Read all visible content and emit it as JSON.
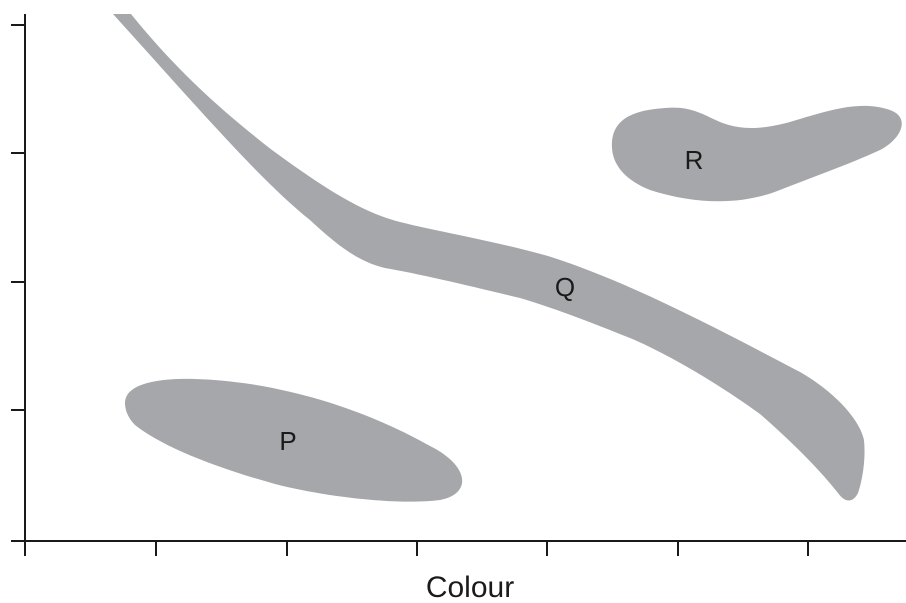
{
  "diagram": {
    "x_axis_label": "Colour",
    "region_color": "#a6a7aa",
    "axis_color": "#1a1a1a",
    "regions": [
      {
        "label": "P"
      },
      {
        "label": "Q"
      },
      {
        "label": "R"
      }
    ]
  }
}
